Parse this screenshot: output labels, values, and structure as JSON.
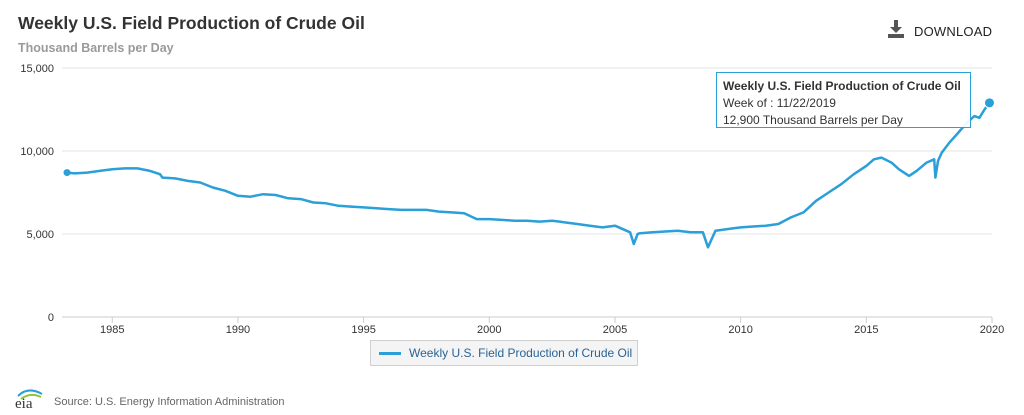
{
  "header": {
    "title": "Weekly U.S. Field Production of Crude Oil",
    "subtitle": "Thousand Barrels per Day",
    "download_label": "DOWNLOAD",
    "download_icon": "download-icon"
  },
  "tooltip": {
    "title": "Weekly U.S. Field Production of Crude Oil",
    "week": "Week of : 11/22/2019",
    "value": "12,900 Thousand Barrels per Day"
  },
  "legend": {
    "label": "Weekly U.S. Field Production of Crude Oil"
  },
  "footer": {
    "logo_text": "eia",
    "source": "Source: U.S. Energy Information Administration"
  },
  "colors": {
    "series": "#2a9fd8",
    "grid": "#e6e6e6",
    "text": "#333333"
  },
  "chart_data": {
    "type": "line",
    "title": "Weekly U.S. Field Production of Crude Oil",
    "subtitle": "Thousand Barrels per Day",
    "xlabel": "",
    "ylabel": "",
    "xlim": [
      1983.0,
      2020.0
    ],
    "ylim": [
      0,
      15000
    ],
    "x_ticks": [
      1985,
      1990,
      1995,
      2000,
      2005,
      2010,
      2015,
      2020
    ],
    "x_tick_labels": [
      "1985",
      "1990",
      "1995",
      "2000",
      "2005",
      "2010",
      "2015",
      "2020"
    ],
    "y_ticks": [
      0,
      5000,
      10000,
      15000
    ],
    "y_tick_labels": [
      "0",
      "5,000",
      "10,000",
      "15,000"
    ],
    "grid": "horizontal",
    "legend": "bottom-center",
    "series": [
      {
        "name": "Weekly U.S. Field Production of Crude Oil",
        "x": [
          1983.2,
          1983.5,
          1984.0,
          1984.5,
          1985.0,
          1985.5,
          1986.0,
          1986.5,
          1986.9,
          1987.0,
          1987.5,
          1988.0,
          1988.5,
          1989.0,
          1989.5,
          1990.0,
          1990.5,
          1991.0,
          1991.5,
          1992.0,
          1992.5,
          1993.0,
          1993.5,
          1994.0,
          1994.5,
          1995.0,
          1995.5,
          1996.0,
          1996.5,
          1997.0,
          1997.5,
          1998.0,
          1998.5,
          1999.0,
          1999.5,
          2000.0,
          2000.5,
          2001.0,
          2001.5,
          2002.0,
          2002.5,
          2002.8,
          2003.0,
          2003.5,
          2004.0,
          2004.5,
          2005.0,
          2005.6,
          2005.75,
          2005.9,
          2006.0,
          2006.5,
          2007.0,
          2007.5,
          2008.0,
          2008.5,
          2008.7,
          2008.85,
          2009.0,
          2009.5,
          2010.0,
          2010.5,
          2011.0,
          2011.5,
          2012.0,
          2012.5,
          2013.0,
          2013.5,
          2014.0,
          2014.5,
          2015.0,
          2015.3,
          2015.6,
          2016.0,
          2016.3,
          2016.7,
          2017.0,
          2017.4,
          2017.7,
          2017.75,
          2017.85,
          2018.0,
          2018.3,
          2018.6,
          2019.0,
          2019.3,
          2019.5,
          2019.7,
          2019.9
        ],
        "values": [
          8700,
          8650,
          8700,
          8800,
          8900,
          8950,
          8950,
          8800,
          8600,
          8400,
          8350,
          8200,
          8100,
          7800,
          7600,
          7300,
          7250,
          7400,
          7350,
          7150,
          7100,
          6900,
          6850,
          6700,
          6650,
          6600,
          6550,
          6500,
          6450,
          6450,
          6450,
          6350,
          6300,
          6250,
          5900,
          5900,
          5850,
          5800,
          5800,
          5750,
          5800,
          5750,
          5700,
          5600,
          5500,
          5400,
          5500,
          5100,
          4400,
          5000,
          5050,
          5100,
          5150,
          5200,
          5100,
          5100,
          4200,
          4700,
          5200,
          5300,
          5400,
          5450,
          5500,
          5600,
          6000,
          6300,
          7000,
          7500,
          8000,
          8600,
          9100,
          9500,
          9600,
          9300,
          8900,
          8500,
          8800,
          9300,
          9500,
          8400,
          9400,
          9900,
          10500,
          11000,
          11700,
          12100,
          12000,
          12500,
          12900
        ]
      }
    ],
    "highlight_point": {
      "x": 2019.9,
      "value": 12900
    }
  }
}
